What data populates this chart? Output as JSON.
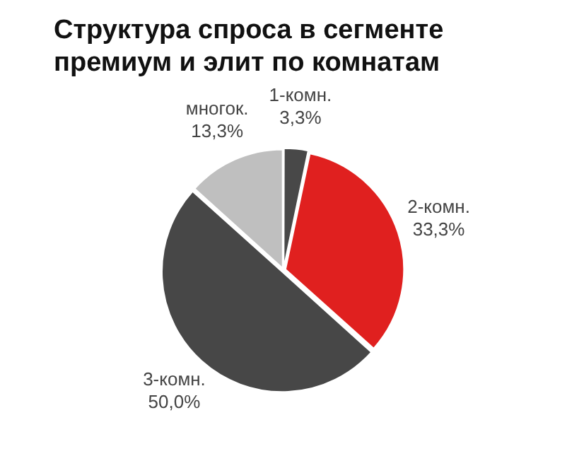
{
  "chart_data": {
    "type": "pie",
    "title": "Структура  спроса в сегменте премиум и элит по комнатам",
    "categories": [
      "1-комн.",
      "2-комн.",
      "3-комн.",
      "многок."
    ],
    "values": [
      3.3,
      33.3,
      50.0,
      13.3
    ],
    "value_labels": [
      "3,3%",
      "33,3%",
      "50,0%",
      "13,3%"
    ],
    "colors": [
      "#484848",
      "#e0201f",
      "#474747",
      "#bfbfbf"
    ],
    "legend": false
  }
}
